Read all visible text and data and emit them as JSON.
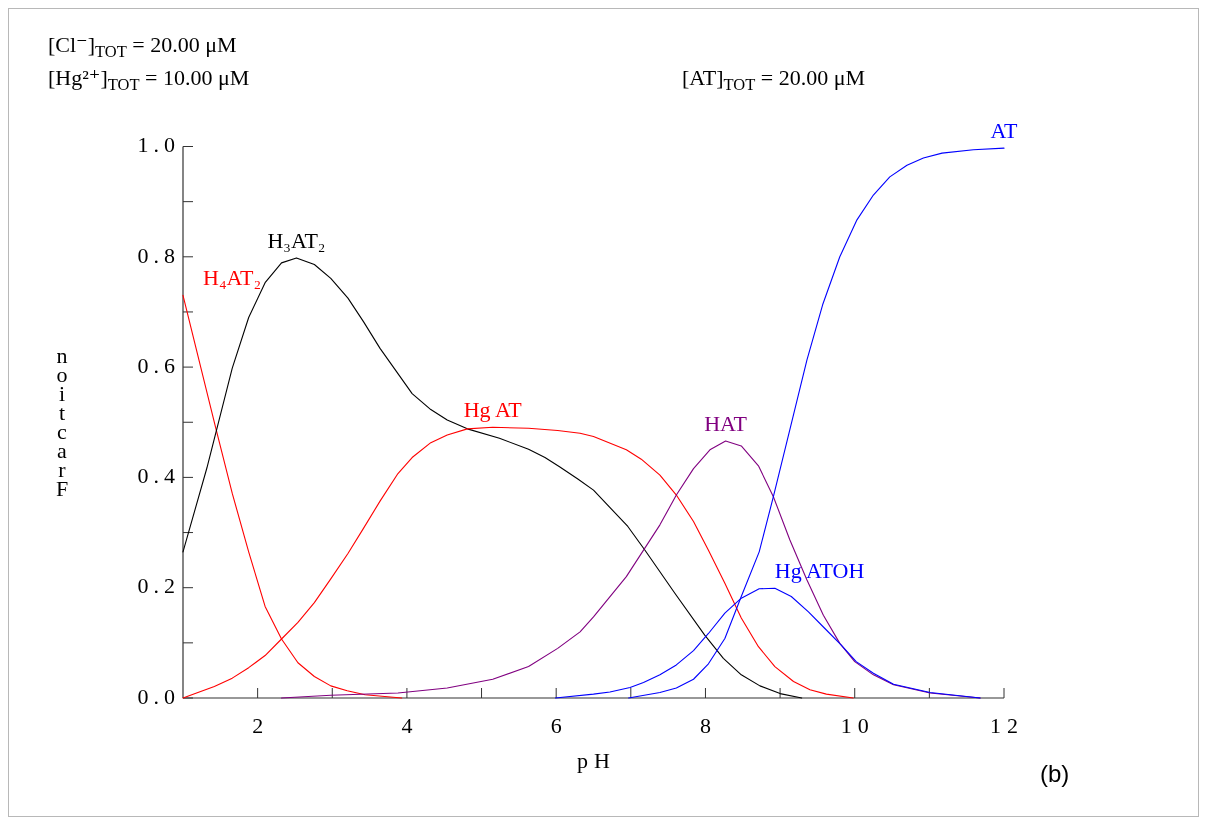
{
  "chart_data": {
    "type": "line",
    "xlabel": "pH",
    "ylabel": "Fraction",
    "line_style": "solid",
    "annotations": [
      "[Cl⁻]$_{TOT}$ = 20.00 μM",
      "[Hg²⁺]$_{TOT}$ = 10.00 μM",
      "[AT]$_{TOT}$ = 20.00 μM",
      "(b)"
    ],
    "xlim": [
      1,
      12
    ],
    "ylim": [
      0,
      1
    ],
    "xticks": [
      2,
      {
        "value": 3,
        "label": null
      },
      4,
      {
        "value": 5,
        "label": null
      },
      6,
      {
        "value": 7,
        "label": null
      },
      8,
      {
        "value": 9,
        "label": null
      },
      10,
      {
        "value": 11,
        "label": null
      },
      12
    ],
    "yticks": [
      {
        "value": 0,
        "label": "0.0"
      },
      {
        "value": 0.1,
        "label": null
      },
      {
        "value": 0.2,
        "label": "0.2"
      },
      {
        "value": 0.3,
        "label": null
      },
      {
        "value": 0.4,
        "label": "0.4"
      },
      {
        "value": 0.5,
        "label": null
      },
      {
        "value": 0.6,
        "label": "0.6"
      },
      {
        "value": 0.7,
        "label": null
      },
      {
        "value": 0.8,
        "label": "0.8"
      },
      {
        "value": 0.9,
        "label": null
      },
      {
        "value": 1,
        "label": "1.0"
      }
    ],
    "series": [
      {
        "name": "H₄AT₂",
        "color": "#ff0000",
        "x": [
          1.0,
          1.44,
          1.66,
          1.88,
          2.1,
          2.32,
          2.54,
          2.76,
          2.98,
          3.2,
          3.44,
          3.93
        ],
        "values": [
          0.73,
          0.489,
          0.371,
          0.265,
          0.166,
          0.107,
          0.064,
          0.039,
          0.022,
          0.013,
          0.006,
          0.0
        ]
      },
      {
        "name": "H₃AT₂",
        "color": "#000000",
        "x": [
          1.0,
          1.32,
          1.66,
          1.88,
          2.1,
          2.32,
          2.52,
          2.76,
          2.98,
          3.21,
          3.42,
          3.64,
          4.07,
          4.32,
          4.54,
          4.81,
          5.24,
          5.63,
          5.85,
          6.05,
          6.29,
          6.5,
          6.96,
          7.19,
          7.59,
          7.99,
          8.24,
          8.48,
          8.73,
          9.0,
          9.29
        ],
        "values": [
          0.265,
          0.417,
          0.598,
          0.69,
          0.753,
          0.789,
          0.798,
          0.786,
          0.761,
          0.725,
          0.682,
          0.634,
          0.552,
          0.523,
          0.504,
          0.488,
          0.471,
          0.451,
          0.436,
          0.419,
          0.397,
          0.377,
          0.311,
          0.268,
          0.19,
          0.114,
          0.072,
          0.042,
          0.022,
          0.008,
          0.0
        ]
      },
      {
        "name": "Hg AT",
        "color": "#ff0000",
        "x": [
          1.0,
          1.2,
          1.42,
          1.66,
          1.88,
          2.1,
          2.32,
          2.54,
          2.76,
          2.98,
          3.21,
          3.42,
          3.64,
          3.88,
          4.07,
          4.32,
          4.54,
          4.81,
          5.15,
          5.63,
          6.02,
          6.32,
          6.5,
          6.94,
          7.14,
          7.39,
          7.61,
          7.84,
          8.04,
          8.26,
          8.48,
          8.71,
          8.93,
          9.18,
          9.4,
          9.62,
          9.98
        ],
        "values": [
          0,
          0.01,
          0.021,
          0.036,
          0.055,
          0.077,
          0.107,
          0.137,
          0.173,
          0.216,
          0.262,
          0.308,
          0.357,
          0.407,
          0.436,
          0.463,
          0.477,
          0.488,
          0.491,
          0.489,
          0.485,
          0.48,
          0.474,
          0.45,
          0.433,
          0.404,
          0.368,
          0.32,
          0.268,
          0.208,
          0.145,
          0.093,
          0.057,
          0.03,
          0.015,
          0.007,
          0.0
        ]
      },
      {
        "name": "HAT",
        "color": "#800080",
        "x": [
          2.32,
          2.98,
          3.88,
          4.54,
          5.15,
          5.63,
          6.02,
          6.32,
          6.5,
          6.94,
          7.39,
          7.61,
          7.84,
          8.06,
          8.27,
          8.48,
          8.71,
          8.91,
          9.13,
          9.36,
          9.58,
          9.8,
          10.0,
          10.25,
          10.52,
          11.01,
          11.68
        ],
        "values": [
          0,
          0.005,
          0.009,
          0.018,
          0.034,
          0.057,
          0.09,
          0.12,
          0.147,
          0.22,
          0.314,
          0.368,
          0.416,
          0.45,
          0.466,
          0.457,
          0.421,
          0.365,
          0.287,
          0.214,
          0.15,
          0.099,
          0.066,
          0.042,
          0.024,
          0.009,
          0.0
        ]
      },
      {
        "name": "Hg ATOH",
        "color": "#0000ff",
        "x": [
          5.99,
          6.5,
          6.72,
          6.99,
          7.17,
          7.39,
          7.61,
          7.84,
          8.04,
          8.26,
          8.48,
          8.72,
          8.93,
          9.15,
          9.38,
          9.6,
          9.82,
          10.02,
          10.25,
          10.52,
          11.01,
          11.68
        ],
        "values": [
          0,
          0.007,
          0.011,
          0.019,
          0.028,
          0.042,
          0.06,
          0.086,
          0.117,
          0.154,
          0.181,
          0.198,
          0.199,
          0.184,
          0.156,
          0.126,
          0.096,
          0.066,
          0.045,
          0.025,
          0.01,
          0.0
        ]
      },
      {
        "name": "AT",
        "color": "#0000ff",
        "x": [
          6.97,
          7.39,
          7.61,
          7.84,
          8.04,
          8.26,
          8.48,
          8.72,
          8.91,
          9.13,
          9.36,
          9.57,
          9.8,
          10.03,
          10.25,
          10.47,
          10.7,
          10.92,
          11.17,
          11.59,
          12.0
        ],
        "values": [
          0,
          0.01,
          0.018,
          0.034,
          0.062,
          0.108,
          0.184,
          0.265,
          0.365,
          0.486,
          0.613,
          0.713,
          0.8,
          0.867,
          0.912,
          0.945,
          0.966,
          0.979,
          0.988,
          0.994,
          0.997
        ]
      }
    ]
  }
}
